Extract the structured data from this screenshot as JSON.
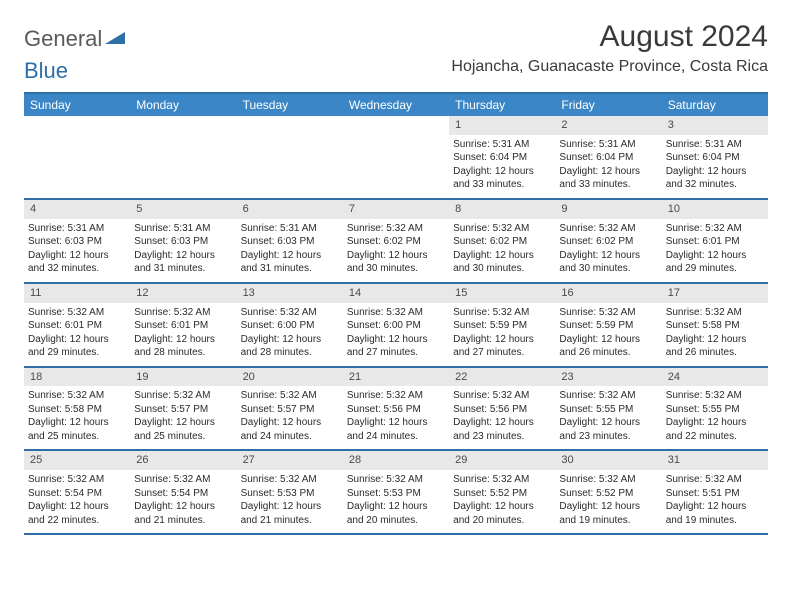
{
  "logo": {
    "word1": "General",
    "word2": "Blue"
  },
  "title": "August 2024",
  "location": "Hojancha, Guanacaste Province, Costa Rica",
  "day_headers": [
    "Sunday",
    "Monday",
    "Tuesday",
    "Wednesday",
    "Thursday",
    "Friday",
    "Saturday"
  ],
  "colors": {
    "header_bg": "#3b86c6",
    "header_text": "#ffffff",
    "border": "#2f6fa8",
    "daynum_bg": "#e8e8e8",
    "text": "#2b2b2b"
  },
  "typography": {
    "title_fontsize": 30,
    "location_fontsize": 16,
    "header_fontsize": 12,
    "cell_fontsize": 10
  },
  "weeks": [
    [
      {
        "empty": true
      },
      {
        "empty": true
      },
      {
        "empty": true
      },
      {
        "empty": true
      },
      {
        "day": "1",
        "sunrise": "Sunrise: 5:31 AM",
        "sunset": "Sunset: 6:04 PM",
        "daylight": "Daylight: 12 hours and 33 minutes."
      },
      {
        "day": "2",
        "sunrise": "Sunrise: 5:31 AM",
        "sunset": "Sunset: 6:04 PM",
        "daylight": "Daylight: 12 hours and 33 minutes."
      },
      {
        "day": "3",
        "sunrise": "Sunrise: 5:31 AM",
        "sunset": "Sunset: 6:04 PM",
        "daylight": "Daylight: 12 hours and 32 minutes."
      }
    ],
    [
      {
        "day": "4",
        "sunrise": "Sunrise: 5:31 AM",
        "sunset": "Sunset: 6:03 PM",
        "daylight": "Daylight: 12 hours and 32 minutes."
      },
      {
        "day": "5",
        "sunrise": "Sunrise: 5:31 AM",
        "sunset": "Sunset: 6:03 PM",
        "daylight": "Daylight: 12 hours and 31 minutes."
      },
      {
        "day": "6",
        "sunrise": "Sunrise: 5:31 AM",
        "sunset": "Sunset: 6:03 PM",
        "daylight": "Daylight: 12 hours and 31 minutes."
      },
      {
        "day": "7",
        "sunrise": "Sunrise: 5:32 AM",
        "sunset": "Sunset: 6:02 PM",
        "daylight": "Daylight: 12 hours and 30 minutes."
      },
      {
        "day": "8",
        "sunrise": "Sunrise: 5:32 AM",
        "sunset": "Sunset: 6:02 PM",
        "daylight": "Daylight: 12 hours and 30 minutes."
      },
      {
        "day": "9",
        "sunrise": "Sunrise: 5:32 AM",
        "sunset": "Sunset: 6:02 PM",
        "daylight": "Daylight: 12 hours and 30 minutes."
      },
      {
        "day": "10",
        "sunrise": "Sunrise: 5:32 AM",
        "sunset": "Sunset: 6:01 PM",
        "daylight": "Daylight: 12 hours and 29 minutes."
      }
    ],
    [
      {
        "day": "11",
        "sunrise": "Sunrise: 5:32 AM",
        "sunset": "Sunset: 6:01 PM",
        "daylight": "Daylight: 12 hours and 29 minutes."
      },
      {
        "day": "12",
        "sunrise": "Sunrise: 5:32 AM",
        "sunset": "Sunset: 6:01 PM",
        "daylight": "Daylight: 12 hours and 28 minutes."
      },
      {
        "day": "13",
        "sunrise": "Sunrise: 5:32 AM",
        "sunset": "Sunset: 6:00 PM",
        "daylight": "Daylight: 12 hours and 28 minutes."
      },
      {
        "day": "14",
        "sunrise": "Sunrise: 5:32 AM",
        "sunset": "Sunset: 6:00 PM",
        "daylight": "Daylight: 12 hours and 27 minutes."
      },
      {
        "day": "15",
        "sunrise": "Sunrise: 5:32 AM",
        "sunset": "Sunset: 5:59 PM",
        "daylight": "Daylight: 12 hours and 27 minutes."
      },
      {
        "day": "16",
        "sunrise": "Sunrise: 5:32 AM",
        "sunset": "Sunset: 5:59 PM",
        "daylight": "Daylight: 12 hours and 26 minutes."
      },
      {
        "day": "17",
        "sunrise": "Sunrise: 5:32 AM",
        "sunset": "Sunset: 5:58 PM",
        "daylight": "Daylight: 12 hours and 26 minutes."
      }
    ],
    [
      {
        "day": "18",
        "sunrise": "Sunrise: 5:32 AM",
        "sunset": "Sunset: 5:58 PM",
        "daylight": "Daylight: 12 hours and 25 minutes."
      },
      {
        "day": "19",
        "sunrise": "Sunrise: 5:32 AM",
        "sunset": "Sunset: 5:57 PM",
        "daylight": "Daylight: 12 hours and 25 minutes."
      },
      {
        "day": "20",
        "sunrise": "Sunrise: 5:32 AM",
        "sunset": "Sunset: 5:57 PM",
        "daylight": "Daylight: 12 hours and 24 minutes."
      },
      {
        "day": "21",
        "sunrise": "Sunrise: 5:32 AM",
        "sunset": "Sunset: 5:56 PM",
        "daylight": "Daylight: 12 hours and 24 minutes."
      },
      {
        "day": "22",
        "sunrise": "Sunrise: 5:32 AM",
        "sunset": "Sunset: 5:56 PM",
        "daylight": "Daylight: 12 hours and 23 minutes."
      },
      {
        "day": "23",
        "sunrise": "Sunrise: 5:32 AM",
        "sunset": "Sunset: 5:55 PM",
        "daylight": "Daylight: 12 hours and 23 minutes."
      },
      {
        "day": "24",
        "sunrise": "Sunrise: 5:32 AM",
        "sunset": "Sunset: 5:55 PM",
        "daylight": "Daylight: 12 hours and 22 minutes."
      }
    ],
    [
      {
        "day": "25",
        "sunrise": "Sunrise: 5:32 AM",
        "sunset": "Sunset: 5:54 PM",
        "daylight": "Daylight: 12 hours and 22 minutes."
      },
      {
        "day": "26",
        "sunrise": "Sunrise: 5:32 AM",
        "sunset": "Sunset: 5:54 PM",
        "daylight": "Daylight: 12 hours and 21 minutes."
      },
      {
        "day": "27",
        "sunrise": "Sunrise: 5:32 AM",
        "sunset": "Sunset: 5:53 PM",
        "daylight": "Daylight: 12 hours and 21 minutes."
      },
      {
        "day": "28",
        "sunrise": "Sunrise: 5:32 AM",
        "sunset": "Sunset: 5:53 PM",
        "daylight": "Daylight: 12 hours and 20 minutes."
      },
      {
        "day": "29",
        "sunrise": "Sunrise: 5:32 AM",
        "sunset": "Sunset: 5:52 PM",
        "daylight": "Daylight: 12 hours and 20 minutes."
      },
      {
        "day": "30",
        "sunrise": "Sunrise: 5:32 AM",
        "sunset": "Sunset: 5:52 PM",
        "daylight": "Daylight: 12 hours and 19 minutes."
      },
      {
        "day": "31",
        "sunrise": "Sunrise: 5:32 AM",
        "sunset": "Sunset: 5:51 PM",
        "daylight": "Daylight: 12 hours and 19 minutes."
      }
    ]
  ]
}
